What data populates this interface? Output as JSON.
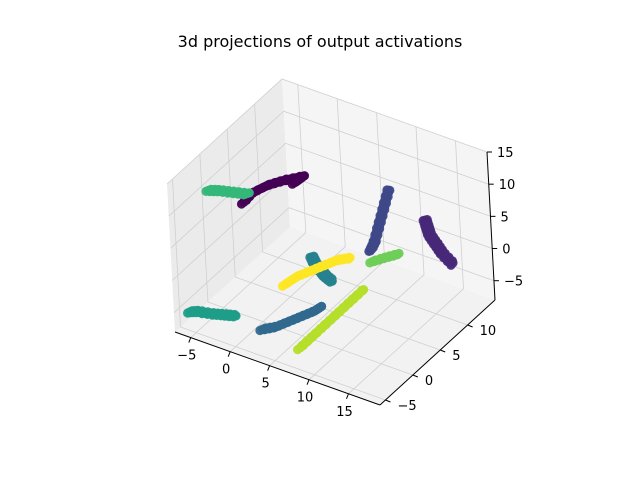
{
  "chart_data": {
    "type": "scatter",
    "title": "3d projections of output activations",
    "projection": "3d",
    "grid": true,
    "xlabel": "",
    "ylabel": "",
    "zlabel": "",
    "x_ticks": [
      "−5",
      "0",
      "5",
      "10",
      "15"
    ],
    "y_ticks": [
      "−5",
      "0",
      "5",
      "10"
    ],
    "z_ticks": [
      "−5",
      "0",
      "5",
      "10",
      "15"
    ],
    "colormap": "viridis",
    "colors": [
      "#440154",
      "#482878",
      "#3e4989",
      "#31688e",
      "#26828e",
      "#1f9e89",
      "#35b779",
      "#6ece58",
      "#b5de2b",
      "#fde725"
    ],
    "clusters": [
      {
        "color": "#440154",
        "points": [
          [
            0.5,
            -3,
            13
          ],
          [
            1,
            -2,
            14
          ],
          [
            2,
            -0.5,
            14.5
          ],
          [
            3,
            1,
            14.5
          ],
          [
            4,
            3,
            14
          ],
          [
            3.5,
            2,
            13.5
          ]
        ]
      },
      {
        "color": "#482878",
        "points": [
          [
            12,
            13,
            3
          ],
          [
            13,
            12,
            3
          ],
          [
            14,
            11,
            3
          ],
          [
            15.5,
            10,
            3
          ],
          [
            17,
            9,
            3
          ],
          [
            19,
            8,
            3
          ]
        ]
      },
      {
        "color": "#3e4989",
        "points": [
          [
            9,
            11,
            8
          ],
          [
            9,
            10,
            6
          ],
          [
            9,
            9,
            4
          ],
          [
            9,
            8,
            2
          ],
          [
            8.8,
            7.5,
            1
          ]
        ]
      },
      {
        "color": "#31688e",
        "points": [
          [
            2,
            -3,
            -6
          ],
          [
            3,
            -2,
            -6
          ],
          [
            4,
            -1,
            -5.5
          ],
          [
            5,
            0,
            -5
          ],
          [
            6,
            1,
            -4.5
          ],
          [
            6.5,
            1.5,
            -4
          ]
        ]
      },
      {
        "color": "#26828e",
        "points": [
          [
            6,
            1,
            4
          ],
          [
            6,
            1.5,
            2.5
          ],
          [
            6.5,
            2,
            1
          ],
          [
            6.5,
            2.5,
            0
          ],
          [
            7,
            3,
            -1
          ]
        ]
      },
      {
        "color": "#1f9e89",
        "points": [
          [
            -5,
            -6,
            -4
          ],
          [
            -4,
            -6,
            -3.5
          ],
          [
            -2,
            -6,
            -3
          ],
          [
            -0.5,
            -6,
            -2.5
          ],
          [
            1,
            -6,
            -2
          ]
        ]
      },
      {
        "color": "#35b779",
        "points": [
          [
            -4,
            -3,
            13
          ],
          [
            -3,
            -2.5,
            13
          ],
          [
            -1.5,
            -2,
            13
          ],
          [
            0,
            -1.5,
            13
          ]
        ]
      },
      {
        "color": "#b5de2b",
        "points": [
          [
            6,
            -2,
            -8
          ],
          [
            7,
            -1,
            -6.5
          ],
          [
            8,
            0,
            -5
          ],
          [
            9,
            1,
            -3.5
          ],
          [
            10,
            2,
            -2
          ],
          [
            11,
            3,
            -0.5
          ]
        ]
      },
      {
        "color": "#fde725",
        "points": [
          [
            3,
            0,
            -1
          ],
          [
            4,
            1,
            0
          ],
          [
            5,
            2,
            0.5
          ],
          [
            6,
            3,
            1
          ],
          [
            7,
            4,
            1.5
          ],
          [
            8,
            5,
            1.5
          ]
        ]
      },
      {
        "color": "#6ece58",
        "points": [
          [
            10,
            6,
            1
          ],
          [
            11,
            7,
            1.3
          ],
          [
            12,
            8,
            1.5
          ]
        ]
      }
    ]
  }
}
